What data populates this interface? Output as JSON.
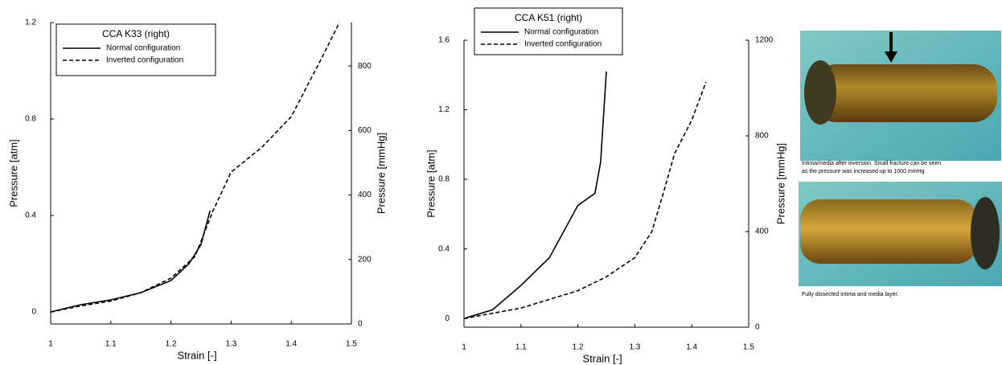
{
  "chart_data": [
    {
      "type": "line",
      "title": "CCA K33 (right)",
      "x_label": "Strain [-]",
      "y_label": "Pressure [atm]",
      "y2_label": "Pressure [mmHg]",
      "xlim": [
        1,
        1.5
      ],
      "xticks": [
        1,
        1.1,
        1.2,
        1.3,
        1.4,
        1.5
      ],
      "ylim": [
        -0.05,
        1.2
      ],
      "yticks": [
        0,
        0.4,
        0.8,
        1.2
      ],
      "y2lim": [
        0,
        935
      ],
      "y2ticks": [
        0,
        200,
        400,
        600,
        800
      ],
      "series": [
        {
          "name": "Normal configuration",
          "color": "#000000",
          "linestyle": "solid",
          "x": [
            1,
            1.05,
            1.1,
            1.15,
            1.2,
            1.23,
            1.25,
            1.265
          ],
          "values": [
            0,
            0.03,
            0.05,
            0.08,
            0.13,
            0.2,
            0.28,
            0.42
          ]
        },
        {
          "name": "Inverted configuration",
          "color": "#000000",
          "linestyle": "dashed",
          "x": [
            1,
            1.05,
            1.1,
            1.15,
            1.2,
            1.24,
            1.27,
            1.3,
            1.35,
            1.4,
            1.45,
            1.48
          ],
          "values": [
            0,
            0.025,
            0.045,
            0.08,
            0.14,
            0.23,
            0.42,
            0.58,
            0.68,
            0.81,
            1.05,
            1.2
          ]
        }
      ]
    },
    {
      "type": "line",
      "title": "CCA K51 (right)",
      "x_label": "Strain [-]",
      "y_label": "Pressure [atm]",
      "y2_label": "Pressure [mmHg]",
      "xlim": [
        1,
        1.5
      ],
      "xticks": [
        1,
        1.1,
        1.2,
        1.3,
        1.4,
        1.5
      ],
      "ylim": [
        -0.05,
        1.6
      ],
      "yticks": [
        0,
        0.4,
        0.8,
        1.2,
        1.6
      ],
      "y2lim": [
        0,
        1200
      ],
      "y2ticks": [
        0,
        400,
        800,
        1200
      ],
      "series": [
        {
          "name": "Normal configuration",
          "color": "#000000",
          "linestyle": "solid",
          "x": [
            1,
            1.05,
            1.1,
            1.15,
            1.2,
            1.23,
            1.24,
            1.25
          ],
          "values": [
            0,
            0.05,
            0.19,
            0.35,
            0.65,
            0.72,
            0.9,
            1.42
          ]
        },
        {
          "name": "Inverted configuration",
          "color": "#000000",
          "linestyle": "dashed",
          "x": [
            1,
            1.1,
            1.2,
            1.25,
            1.3,
            1.33,
            1.35,
            1.37,
            1.4,
            1.425
          ],
          "values": [
            0,
            0.06,
            0.16,
            0.24,
            0.35,
            0.5,
            0.72,
            0.95,
            1.14,
            1.36
          ]
        }
      ]
    }
  ],
  "photos": [
    {
      "caption": "Intima/media after inversion. Small fracture can be seen as the pressure was increased up to 1000 mmHg"
    },
    {
      "caption": "Fully dissected intima and media layer."
    }
  ]
}
